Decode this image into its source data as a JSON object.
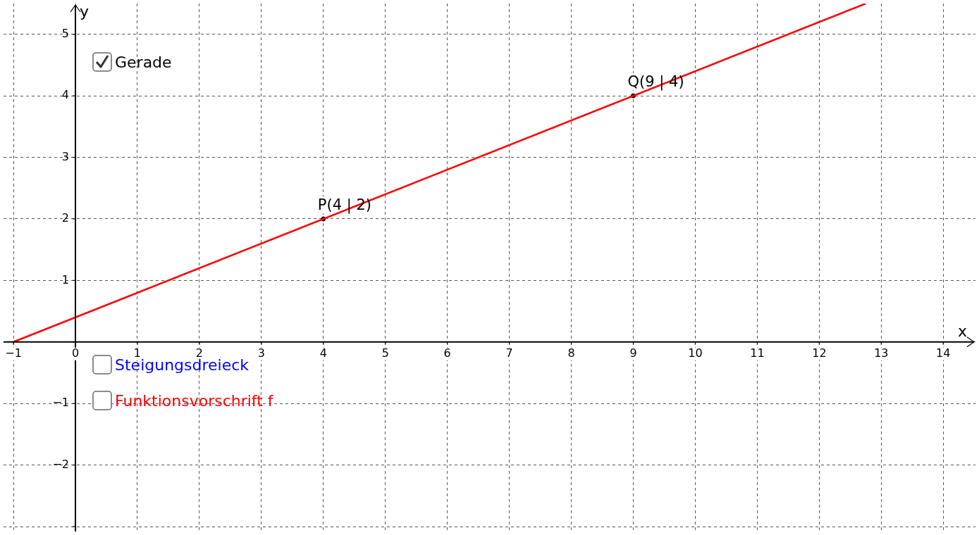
{
  "chart_data": {
    "type": "line",
    "xlabel": "x",
    "ylabel": "y",
    "xlim": [
      -1.16,
      14.52
    ],
    "ylim": [
      -3.08,
      5.5
    ],
    "xticks": [
      {
        "value": -1,
        "label": "−1"
      },
      0,
      1,
      2,
      3,
      4,
      5,
      6,
      7,
      8,
      9,
      10,
      11,
      12,
      13,
      14
    ],
    "yticks": [
      {
        "value": -3,
        "label": null
      },
      {
        "value": -2,
        "label": "−2"
      },
      {
        "value": -1,
        "label": "−1"
      },
      {
        "value": 0,
        "label": null
      },
      1,
      2,
      3,
      4,
      5
    ],
    "grid": true,
    "legend": false,
    "line_style": "solid",
    "series": [
      {
        "color": "#ff0000",
        "x": [
          -1,
          12.75
        ],
        "values": [
          0,
          5.5
        ]
      },
      {
        "type": "scatter",
        "color": "#000000",
        "x": [
          4,
          9
        ],
        "values": [
          2,
          4
        ]
      }
    ],
    "annotations": [
      {
        "text": "P(4 | 2)",
        "x": 4,
        "y": 2
      },
      {
        "text": "Q(9 | 4)",
        "x": 9,
        "y": 4
      },
      "Gerade",
      "Steigungsdreieck",
      "Funktionsvorschrift f"
    ]
  }
}
